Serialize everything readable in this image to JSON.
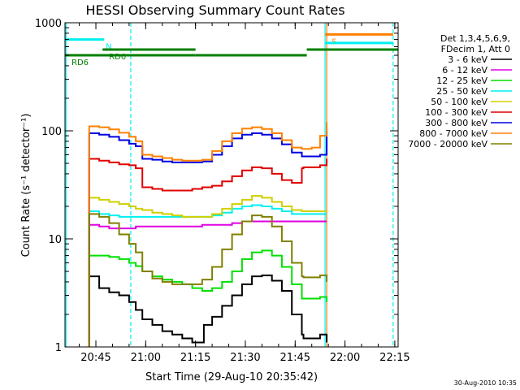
{
  "chart_data": {
    "type": "line",
    "title": "HESSI Observing Summary Count Rates",
    "xlabel": "Start Time (29-Aug-10 20:35:42)",
    "ylabel": "Count Rate (s⁻¹ detector⁻¹)",
    "y_scale": "log",
    "ylim": [
      1,
      1000
    ],
    "xlim": [
      "20:35:42",
      "22:16:00"
    ],
    "x_ticks": [
      "20:45",
      "21:00",
      "21:15",
      "21:30",
      "21:45",
      "22:00",
      "22:15"
    ],
    "y_ticks": [
      "1",
      "10",
      "100",
      "1000"
    ],
    "grid": false,
    "legend_position": "right",
    "legend_header": [
      "Det 1,3,4,5,6,9,",
      "FDecim 1, Att 0"
    ],
    "footer_date": "30-Aug-2010 10:35",
    "x": [
      "20:43:00",
      "20:46:00",
      "20:49:00",
      "20:52:00",
      "20:55:00",
      "20:57:00",
      "20:59:00",
      "21:02:00",
      "21:05:00",
      "21:08:00",
      "21:11:00",
      "21:14:00",
      "21:17:00",
      "21:17:30",
      "21:20:00",
      "21:23:00",
      "21:26:00",
      "21:29:00",
      "21:32:00",
      "21:35:00",
      "21:38:00",
      "21:41:00",
      "21:44:00",
      "21:47:00",
      "21:47:30",
      "21:50:00",
      "21:52:30",
      "21:54:30"
    ],
    "series": [
      {
        "name": "3 - 6 keV",
        "color": "#000000",
        "values": [
          4.5,
          3.5,
          3.2,
          3.0,
          2.6,
          2.2,
          1.8,
          1.6,
          1.4,
          1.3,
          1.2,
          1.1,
          1.1,
          1.6,
          1.9,
          2.4,
          3.0,
          3.8,
          4.5,
          4.6,
          4.1,
          3.3,
          2.0,
          1.3,
          1.2,
          1.2,
          1.3,
          1.1
        ]
      },
      {
        "name": "6 - 12 keV",
        "color": "#e000e0",
        "values": [
          13.5,
          13.0,
          12.5,
          12.5,
          12.5,
          13.0,
          13.0,
          13.0,
          13.0,
          13.0,
          13.0,
          13.0,
          13.5,
          13.5,
          13.5,
          13.5,
          14.0,
          14.5,
          14.5,
          14.5,
          14.5,
          14.5,
          14.5,
          14.5,
          14.5,
          14.5,
          14.5,
          14.5
        ]
      },
      {
        "name": "12 - 25 keV",
        "color": "#00e000",
        "values": [
          7.0,
          7.0,
          6.8,
          6.5,
          6.0,
          5.6,
          5.0,
          4.5,
          4.2,
          4.0,
          3.8,
          3.5,
          3.3,
          3.3,
          3.5,
          4.0,
          5.0,
          6.5,
          7.5,
          7.8,
          7.0,
          5.5,
          3.8,
          2.8,
          2.8,
          2.8,
          2.9,
          2.6
        ]
      },
      {
        "name": "25 - 50 keV",
        "color": "#00f0f0",
        "values": [
          18.0,
          17.0,
          16.5,
          16.0,
          16.0,
          16.0,
          16.0,
          16.0,
          16.0,
          16.0,
          16.0,
          16.0,
          16.0,
          16.0,
          16.5,
          17.5,
          19.0,
          20.0,
          20.5,
          20.0,
          19.0,
          18.0,
          17.0,
          17.0,
          17.0,
          17.0,
          17.0,
          17.0
        ]
      },
      {
        "name": "50 - 100 keV",
        "color": "#d0d000",
        "values": [
          24.0,
          23.0,
          22.0,
          21.0,
          20.0,
          19.0,
          18.5,
          17.5,
          17.0,
          16.5,
          16.0,
          16.0,
          16.0,
          16.0,
          17.0,
          19.0,
          21.0,
          23.0,
          25.0,
          24.0,
          22.0,
          20.0,
          18.5,
          18.0,
          18.0,
          18.0,
          18.0,
          18.0
        ]
      },
      {
        "name": "100 - 300 keV",
        "color": "#e00000",
        "values": [
          55.0,
          53.0,
          51.0,
          49.0,
          48.0,
          45.0,
          30.0,
          29.0,
          28.0,
          28.0,
          28.0,
          29.0,
          30.0,
          30.0,
          31.0,
          34.0,
          38.0,
          43.0,
          46.0,
          45.0,
          40.0,
          35.0,
          33.0,
          45.0,
          46.0,
          46.0,
          48.0,
          55.0
        ]
      },
      {
        "name": "300 - 800 keV",
        "color": "#0000e0",
        "values": [
          95.0,
          92.0,
          88.0,
          82.0,
          76.0,
          72.0,
          55.0,
          54.0,
          52.0,
          51.0,
          51.0,
          51.0,
          52.0,
          52.0,
          60.0,
          72.0,
          85.0,
          92.0,
          95.0,
          92.0,
          85.0,
          75.0,
          63.0,
          58.0,
          58.0,
          58.0,
          60.0,
          100.0
        ]
      },
      {
        "name": "800 - 7000 keV",
        "color": "#ff8000",
        "values": [
          110.0,
          108.0,
          103.0,
          96.0,
          88.0,
          80.0,
          60.0,
          58.0,
          56.0,
          54.0,
          53.0,
          53.0,
          54.0,
          54.0,
          65.0,
          80.0,
          95.0,
          105.0,
          108.0,
          104.0,
          95.0,
          82.0,
          70.0,
          68.0,
          68.0,
          70.0,
          90.0,
          120.0
        ]
      },
      {
        "name": "7000 - 20000 keV",
        "color": "#808000",
        "values": [
          17.0,
          16.0,
          14.0,
          11.0,
          9.0,
          7.5,
          5.0,
          4.3,
          4.0,
          3.8,
          3.8,
          3.8,
          4.2,
          4.2,
          5.5,
          8.0,
          11.0,
          14.5,
          16.5,
          16.0,
          13.0,
          9.5,
          6.0,
          4.5,
          4.4,
          4.4,
          4.6,
          4.0
        ]
      }
    ],
    "annotations": {
      "lines": [
        {
          "label": "",
          "from": "20:35:42",
          "to": "20:46:00",
          "level": 700,
          "color": "#00f0f0"
        },
        {
          "label": "N",
          "from": "20:46:00",
          "to": "20:47:30",
          "level": 700,
          "color": "#00f0f0"
        },
        {
          "label": "RD0",
          "from": "20:47:00",
          "to": "21:15:00",
          "level": 565,
          "color": "#008000"
        },
        {
          "label": "RD6",
          "from": "20:35:42",
          "to": "20:56:30",
          "level": 500,
          "color": "#008000"
        },
        {
          "label": "",
          "from": "20:56:30",
          "to": "21:15:00",
          "level": 500,
          "color": "#008000"
        },
        {
          "label": "",
          "from": "21:15:00",
          "to": "21:48:30",
          "level": 500,
          "color": "#008000"
        },
        {
          "label": "",
          "from": "21:48:30",
          "to": "22:16:00",
          "level": 565,
          "color": "#008000"
        },
        {
          "label": "S",
          "from": "21:54:00",
          "to": "22:14:30",
          "level": 780,
          "color": "#ff8000"
        },
        {
          "label": "",
          "from": "21:54:00",
          "to": "22:14:30",
          "level": 650,
          "color": "#00f0f0"
        }
      ],
      "vlines": [
        {
          "time": "20:36:00",
          "color": "#00f0f0",
          "style": "solid"
        },
        {
          "time": "20:55:30",
          "color": "#00f0f0",
          "style": "dashed"
        },
        {
          "time": "21:54:00",
          "color": "#00f0f0",
          "style": "solid"
        },
        {
          "time": "21:54:30",
          "color": "#ff8000",
          "style": "solid"
        },
        {
          "time": "22:14:30",
          "color": "#00f0f0",
          "style": "dashed"
        }
      ]
    }
  }
}
